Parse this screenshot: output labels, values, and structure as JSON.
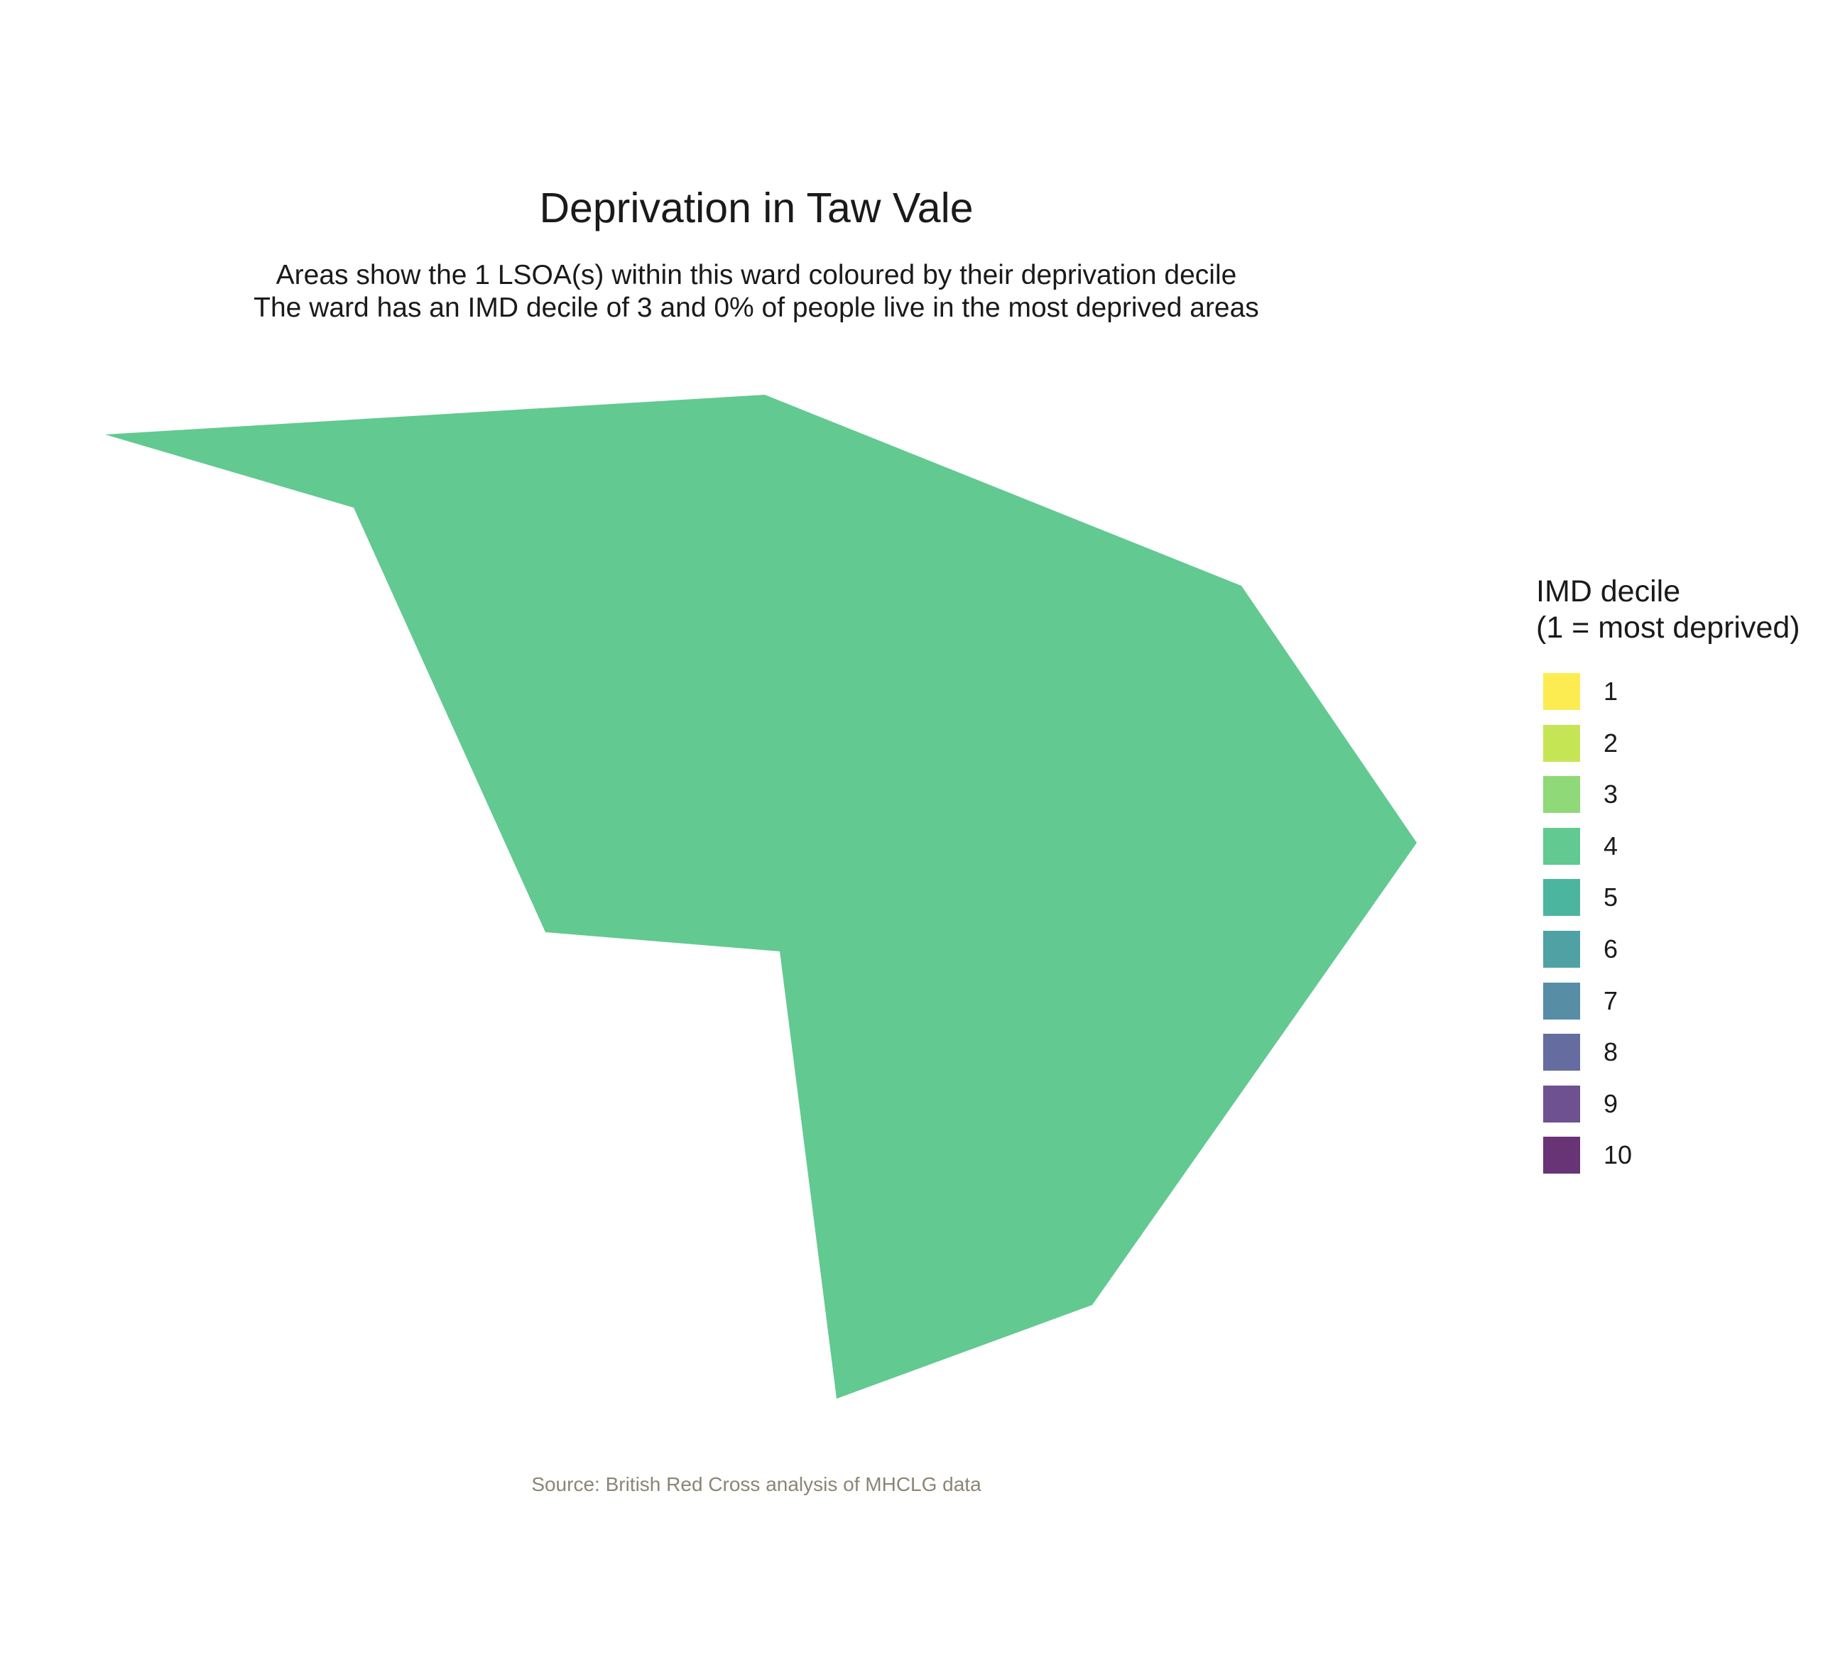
{
  "title": "Deprivation in Taw Vale",
  "subtitle_lines": [
    "Areas show the 1 LSOA(s) within this ward coloured by their deprivation decile",
    "The ward has an IMD decile of 3 and 0% of people live in the most deprived areas"
  ],
  "caption": "Source: British Red Cross analysis of MHCLG data",
  "legend": {
    "title_lines": [
      "IMD decile",
      "(1 = most deprived)"
    ],
    "items": [
      {
        "label": "1",
        "color": "#FDE725"
      },
      {
        "label": "2",
        "color": "#B8DE29"
      },
      {
        "label": "3",
        "color": "#73D056"
      },
      {
        "label": "4",
        "color": "#3BBB75"
      },
      {
        "label": "5",
        "color": "#1FA287"
      },
      {
        "label": "6",
        "color": "#238A8D"
      },
      {
        "label": "7",
        "color": "#2D708E"
      },
      {
        "label": "8",
        "color": "#3F4788"
      },
      {
        "label": "9",
        "color": "#482576"
      },
      {
        "label": "10",
        "color": "#440154"
      }
    ],
    "swatch_opacity": 0.8
  },
  "map": {
    "ward": "Taw Vale",
    "lsoa_count": 1,
    "areas": [
      {
        "imd_decile": 4,
        "fill": "#3BBB75",
        "fill_opacity": 0.8
      }
    ]
  }
}
